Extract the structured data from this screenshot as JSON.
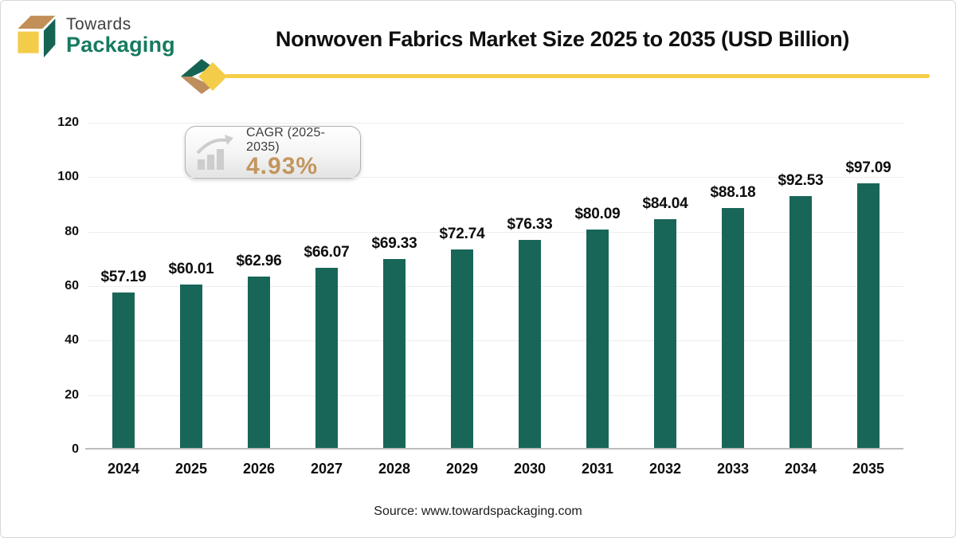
{
  "logo": {
    "line1": "Towards",
    "line2": "Packaging"
  },
  "title": "Nonwoven Fabrics Market Size 2025 to 2035 (USD Billion)",
  "cagr": {
    "label": "CAGR (2025-2035)",
    "value": "4.93%"
  },
  "source": "Source: www.towardspackaging.com",
  "colors": {
    "bar": "#186658",
    "brand_green": "#156353",
    "brand_green_text": "#177a60",
    "brand_tan": "#be8e5d",
    "brand_yellow": "#f3cc49",
    "cagr_value": "#c2965f",
    "grid": "#ededed",
    "axis": "#bdbdbd"
  },
  "chart_data": {
    "type": "bar",
    "title": "Nonwoven Fabrics Market Size 2025 to 2035 (USD Billion)",
    "categories": [
      "2024",
      "2025",
      "2026",
      "2027",
      "2028",
      "2029",
      "2030",
      "2031",
      "2032",
      "2033",
      "2034",
      "2035"
    ],
    "values": [
      57.19,
      60.01,
      62.96,
      66.07,
      69.33,
      72.74,
      76.33,
      80.09,
      84.04,
      88.18,
      92.53,
      97.09
    ],
    "value_prefix": "$",
    "xlabel": "",
    "ylabel": "",
    "ylim": [
      0,
      120
    ],
    "ytick_step": 20,
    "grid": true,
    "legend": false,
    "bar_color": "#186658"
  }
}
